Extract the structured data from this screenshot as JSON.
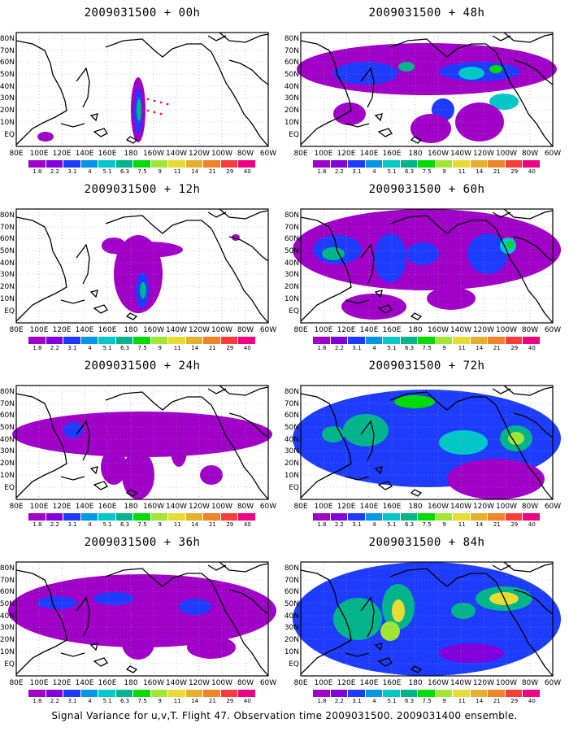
{
  "panels": [
    {
      "title": "2009031500 + 00h"
    },
    {
      "title": "2009031500 + 48h"
    },
    {
      "title": "2009031500 + 12h"
    },
    {
      "title": "2009031500 + 60h"
    },
    {
      "title": "2009031500 + 24h"
    },
    {
      "title": "2009031500 + 72h"
    },
    {
      "title": "2009031500 + 36h"
    },
    {
      "title": "2009031500 + 84h"
    }
  ],
  "y_axis_labels": [
    "80N",
    "70N",
    "60N",
    "50N",
    "40N",
    "30N",
    "20N",
    "10N",
    "EQ"
  ],
  "x_axis_labels": [
    "80E",
    "100E",
    "120E",
    "140E",
    "160E",
    "180",
    "160W",
    "140W",
    "120W",
    "100W",
    "80W",
    "60W"
  ],
  "colorbar": {
    "labels": [
      "1.8",
      "2.2",
      "3.1",
      "4",
      "5.1",
      "6.3",
      "7.5",
      "9",
      "11",
      "14",
      "21",
      "29",
      "40"
    ],
    "colors": [
      "#a000c8",
      "#8200dc",
      "#1e3cff",
      "#0096e6",
      "#00c8c8",
      "#00b48c",
      "#00dc00",
      "#a0e632",
      "#e6dc32",
      "#e6af2d",
      "#f08228",
      "#fa3c3c",
      "#f00082"
    ]
  },
  "caption": "Signal Variance for u,v,T. Flight 47. Observation time 2009031500. 2009031400 ensemble."
}
